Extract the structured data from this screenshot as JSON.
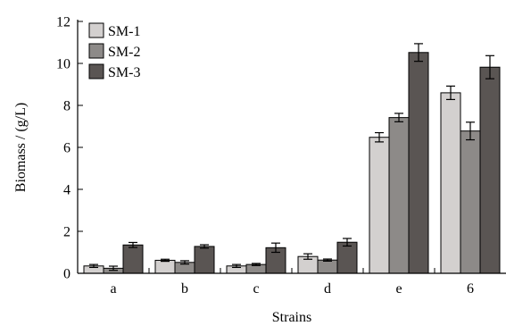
{
  "chart_data": {
    "type": "bar",
    "categories": [
      "a",
      "b",
      "c",
      "d",
      "e",
      "6"
    ],
    "series": [
      {
        "name": "SM-1",
        "color": "#d3d0cf",
        "values": [
          0.35,
          0.62,
          0.35,
          0.8,
          6.48,
          8.6
        ],
        "errors": [
          0.07,
          0.05,
          0.07,
          0.13,
          0.22,
          0.32
        ]
      },
      {
        "name": "SM-2",
        "color": "#8d8a88",
        "values": [
          0.24,
          0.52,
          0.42,
          0.63,
          7.42,
          6.78
        ],
        "errors": [
          0.1,
          0.08,
          0.05,
          0.05,
          0.2,
          0.42
        ]
      },
      {
        "name": "SM-3",
        "color": "#5a5553",
        "values": [
          1.35,
          1.28,
          1.22,
          1.48,
          10.52,
          9.82
        ],
        "errors": [
          0.12,
          0.08,
          0.22,
          0.18,
          0.42,
          0.55
        ]
      }
    ],
    "xlabel": "Strains",
    "ylabel": "Biomass / (g/L)",
    "ylim": [
      0,
      12
    ],
    "yticks": [
      0,
      2,
      4,
      6,
      8,
      10,
      12
    ],
    "grid": false,
    "legend_position": "top-left"
  }
}
